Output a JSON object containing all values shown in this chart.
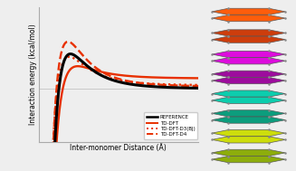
{
  "title": "",
  "xlabel": "Inter-monomer Distance (Å)",
  "ylabel": "Interaction energy (kcal/mol)",
  "background_color": "#eeeeee",
  "plot_bg_color": "#eeeeee",
  "legend_labels": [
    "REFERENCE",
    "TD-DFT",
    "TD-DFT-D3(BJ)",
    "TD-DFT-D4"
  ],
  "legend_colors": [
    "black",
    "#e83000",
    "#e83000",
    "#e83000"
  ],
  "legend_styles": [
    "-",
    "-",
    ":",
    "--"
  ],
  "xlim": [
    3.0,
    9.5
  ],
  "ylim": [
    -13,
    20
  ],
  "molecule_colors_top": [
    "#ff5500",
    "#cc3300",
    "#dd00dd",
    "#990099",
    "#00ccaa",
    "#009977",
    "#ccdd00",
    "#88aa00"
  ],
  "molecule_colors_bot": [
    "#ff5500",
    "#cc3300",
    "#dd00dd",
    "#990099",
    "#00ccaa",
    "#009977",
    "#ccdd00",
    "#88aa00"
  ],
  "y_positions": [
    0.93,
    0.8,
    0.67,
    0.55,
    0.43,
    0.31,
    0.19,
    0.07
  ]
}
